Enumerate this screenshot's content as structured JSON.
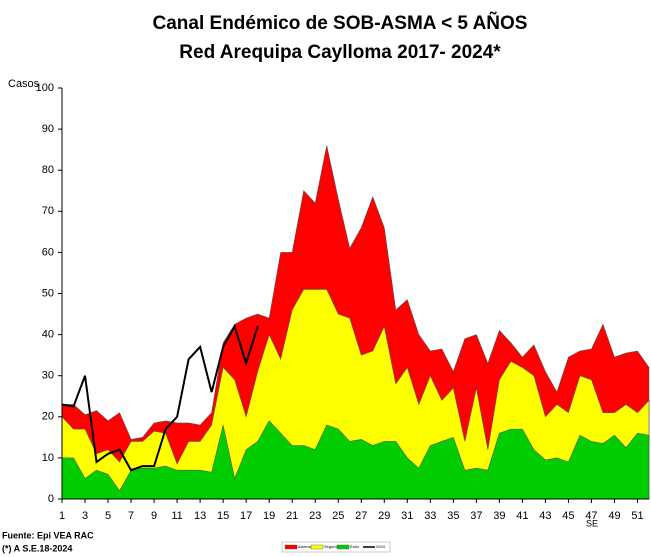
{
  "chart_data": {
    "type": "area",
    "title": "Canal Endémico de SOB-ASMA < 5 AÑOS",
    "subtitle": "Red Arequipa Caylloma 2017- 2024*",
    "y_label": "Casos",
    "x_label": "SE",
    "source": "Fuente: Epi VEA RAC",
    "note": "(*) A S.E.18-2024",
    "x": [
      1,
      2,
      3,
      4,
      5,
      6,
      7,
      8,
      9,
      10,
      11,
      12,
      13,
      14,
      15,
      16,
      17,
      18,
      19,
      20,
      21,
      22,
      23,
      24,
      25,
      26,
      27,
      28,
      29,
      30,
      31,
      32,
      33,
      34,
      35,
      36,
      37,
      38,
      39,
      40,
      41,
      42,
      43,
      44,
      45,
      46,
      47,
      48,
      49,
      50,
      51,
      52
    ],
    "xlim": [
      1,
      52
    ],
    "xticks": [
      1,
      3,
      5,
      7,
      9,
      11,
      13,
      15,
      17,
      19,
      21,
      23,
      25,
      27,
      29,
      31,
      33,
      35,
      37,
      39,
      41,
      43,
      45,
      47,
      49,
      51
    ],
    "ylim": [
      0,
      100
    ],
    "yticks": [
      0,
      10,
      20,
      30,
      40,
      50,
      60,
      70,
      80,
      90,
      100
    ],
    "series": [
      {
        "name": "Alarma",
        "color": "#ff0000",
        "kind": "area",
        "values": [
          23,
          23,
          20.5,
          21.5,
          19,
          21,
          14.5,
          15,
          18.5,
          19,
          18.5,
          18.5,
          18,
          21,
          38,
          42.5,
          44,
          45,
          44,
          60,
          60,
          75,
          72,
          86,
          73,
          61,
          66,
          73.5,
          66,
          46,
          48.5,
          40,
          36,
          36.5,
          31,
          39,
          40,
          33,
          41,
          38,
          34.5,
          37.5,
          31,
          26,
          34.5,
          36,
          36.5,
          42.5,
          34.5,
          35.5,
          36,
          32
        ]
      },
      {
        "name": "Seguridad",
        "color": "#ffff00",
        "kind": "area",
        "values": [
          20,
          17,
          17,
          11,
          12,
          9,
          14,
          14,
          16.5,
          16,
          8.5,
          14,
          14,
          18,
          32,
          29,
          20,
          31,
          40,
          34,
          46,
          51,
          51,
          51,
          45,
          44,
          35,
          36,
          42,
          28,
          32,
          23,
          30,
          24,
          27,
          14,
          27,
          12,
          29,
          33.5,
          32,
          30,
          20,
          23,
          21,
          30,
          29,
          21,
          21,
          23,
          21,
          24
        ]
      },
      {
        "name": "Éxito",
        "color": "#00cc00",
        "kind": "area",
        "values": [
          10,
          10,
          5,
          7,
          6,
          2,
          7,
          7.5,
          7.5,
          8,
          7,
          7,
          7,
          6.5,
          18,
          5,
          12,
          14,
          19,
          16,
          13,
          13,
          12,
          18,
          17,
          14,
          14.5,
          13,
          14,
          14,
          10,
          7.5,
          13,
          14,
          15,
          7,
          7.5,
          7,
          16,
          17,
          17,
          12,
          9.5,
          10,
          9,
          15.5,
          14,
          13.5,
          15.5,
          12.5,
          16,
          15.5
        ]
      },
      {
        "name": "2024",
        "color": "#000000",
        "kind": "line",
        "values": [
          23,
          22.5,
          30,
          9,
          11,
          12,
          7,
          8,
          8,
          17,
          20,
          34,
          37,
          26,
          37,
          42,
          33,
          42,
          null,
          null,
          null,
          null,
          null,
          null,
          null,
          null,
          null,
          null,
          null,
          null,
          null,
          null,
          null,
          null,
          null,
          null,
          null,
          null,
          null,
          null,
          null,
          null,
          null,
          null,
          null,
          null,
          null,
          null,
          null,
          null,
          null,
          null
        ]
      }
    ]
  }
}
